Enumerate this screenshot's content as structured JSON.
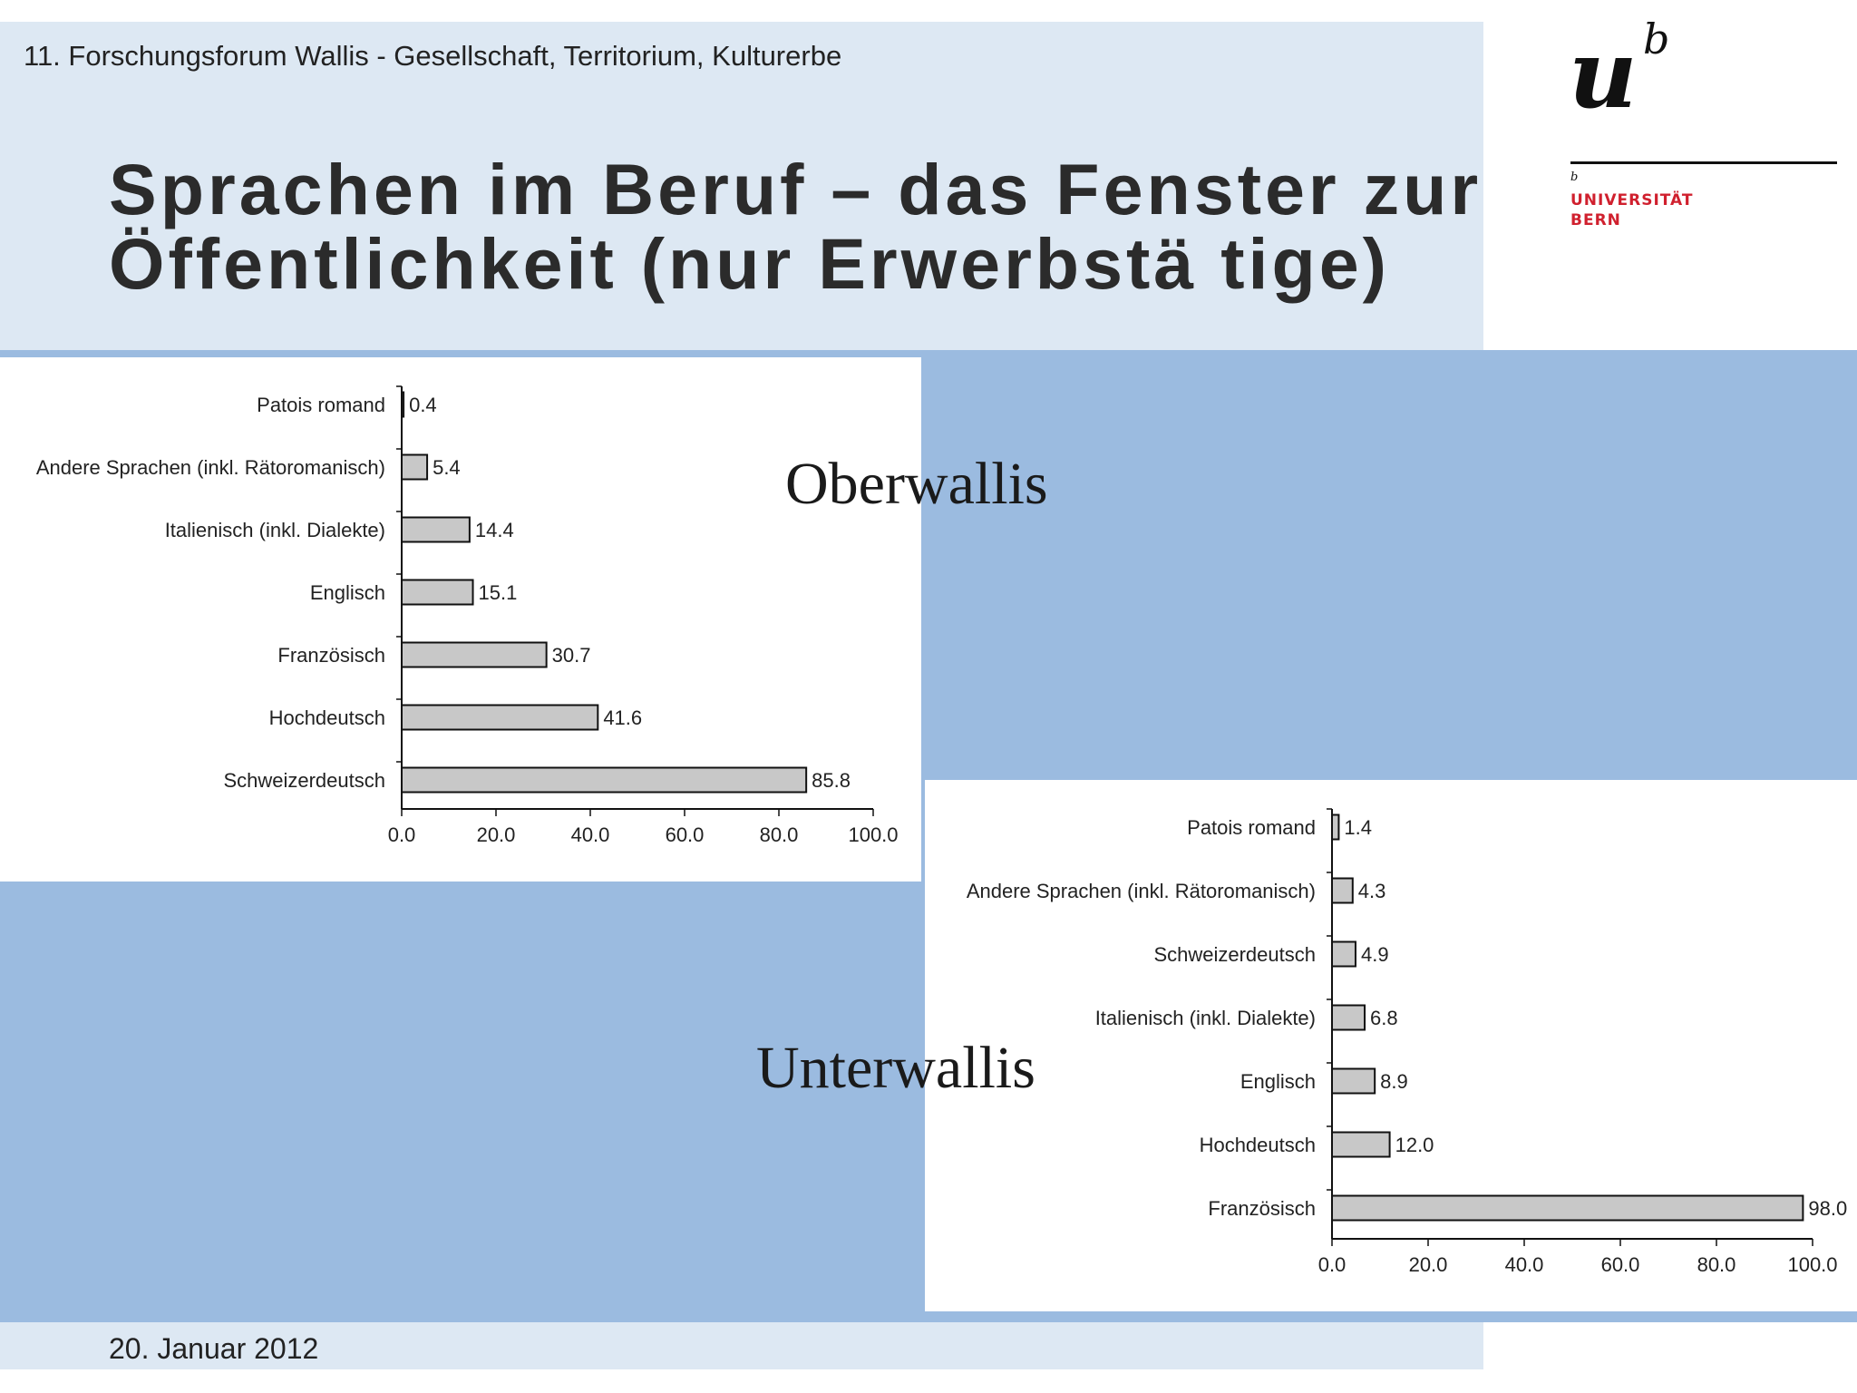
{
  "header": {
    "forum": "11. Forschungsforum Wallis - Gesellschaft, Territorium, Kulturerbe",
    "title_line1": "Sprachen im Beruf – das Fenster zur",
    "title_line2": "Öffentlichkeit (nur Erwerbstä tige)"
  },
  "logo": {
    "mark_u": "u",
    "mark_b": "b",
    "mark_b_small": "b",
    "university": "UNIVERSITÄT",
    "city": "BERN"
  },
  "labels": {
    "oberwallis": "Oberwallis",
    "unterwallis": "Unterwallis"
  },
  "footer": {
    "date": "20. Januar 2012"
  },
  "colors": {
    "band_light": "#dde8f3",
    "band_blue": "#9bbbe0",
    "bar_fill": "#c8c8c8",
    "logo_red": "#d0202e"
  },
  "chart_data": [
    {
      "type": "bar",
      "orientation": "horizontal",
      "region": "Oberwallis",
      "categories": [
        "Patois romand",
        "Andere Sprachen (inkl. Rätoromanisch)",
        "Italienisch (inkl. Dialekte)",
        "Englisch",
        "Französisch",
        "Hochdeutsch",
        "Schweizerdeutsch"
      ],
      "values": [
        0.4,
        5.4,
        14.4,
        15.1,
        30.7,
        41.6,
        85.8
      ],
      "value_labels": [
        "0.4",
        "5.4",
        "14.4",
        "15.1",
        "30.7",
        "41.6",
        "85.8"
      ],
      "xlim": [
        0,
        100
      ],
      "ticks": [
        "0.0",
        "20.0",
        "40.0",
        "60.0",
        "80.0",
        "100.0"
      ]
    },
    {
      "type": "bar",
      "orientation": "horizontal",
      "region": "Unterwallis",
      "categories": [
        "Patois romand",
        "Andere Sprachen (inkl. Rätoromanisch)",
        "Schweizerdeutsch",
        "Italienisch (inkl. Dialekte)",
        "Englisch",
        "Hochdeutsch",
        "Französisch"
      ],
      "values": [
        1.4,
        4.3,
        4.9,
        6.8,
        8.9,
        12.0,
        98.0
      ],
      "value_labels": [
        "1.4",
        "4.3",
        "4.9",
        "6.8",
        "8.9",
        "12.0",
        "98.0"
      ],
      "xlim": [
        0,
        100
      ],
      "ticks": [
        "0.0",
        "20.0",
        "40.0",
        "60.0",
        "80.0",
        "100.0"
      ]
    }
  ]
}
